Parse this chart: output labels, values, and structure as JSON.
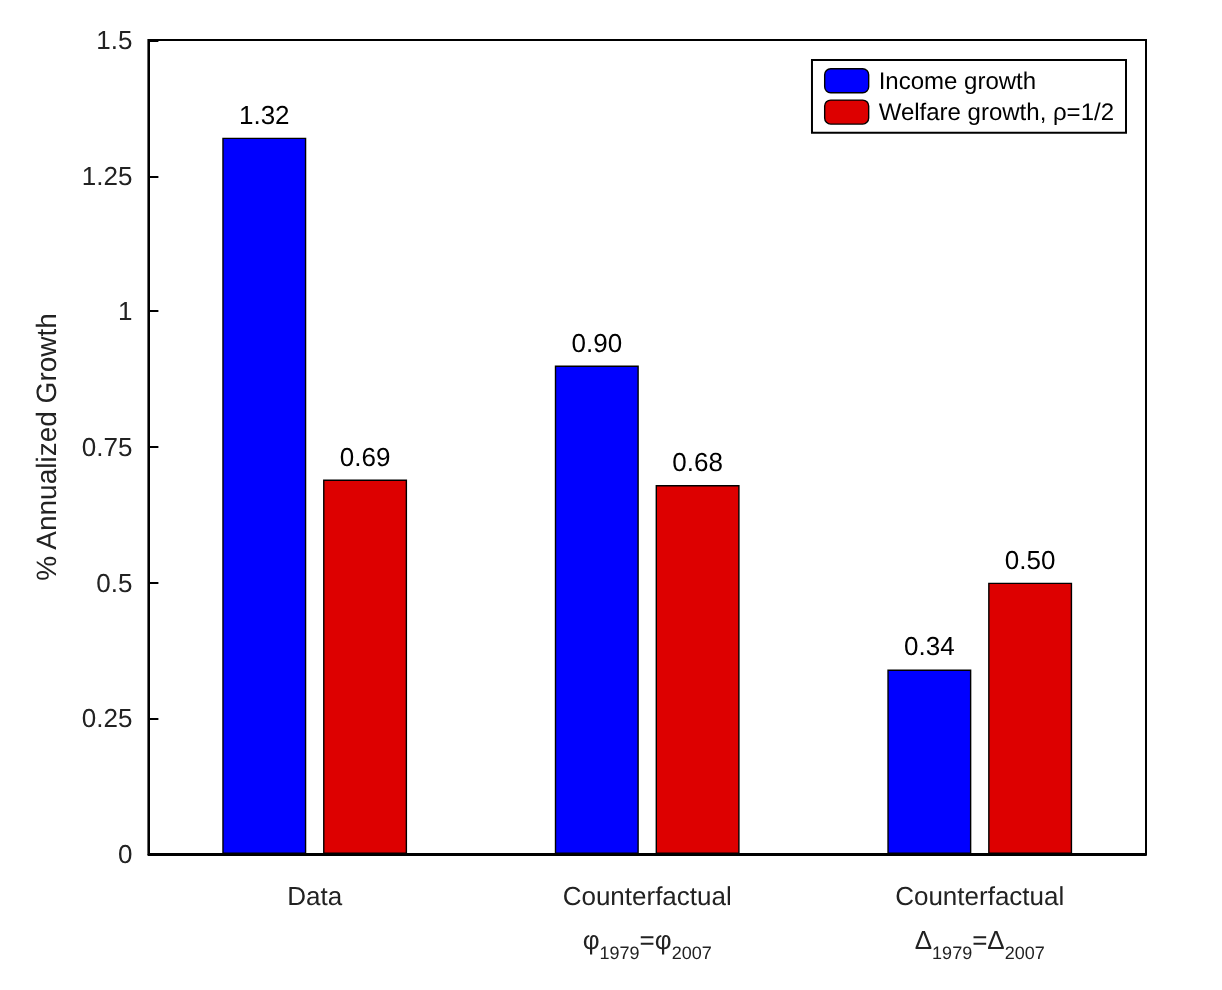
{
  "chart_data": {
    "type": "bar",
    "ylabel": "% Annualized Growth",
    "categories": [
      "Data",
      "Counterfactual\nφ$_{1979}$=φ$_{2007}$",
      "Counterfactual\nΔ$_{1979}$=Δ$_{2007}$"
    ],
    "series": [
      {
        "name": "Income growth",
        "color": "#0000ff",
        "values": [
          1.32,
          0.9,
          0.34
        ]
      },
      {
        "name": "Welfare growth, ρ=1/2",
        "color": "#dd0000",
        "values": [
          0.69,
          0.68,
          0.5
        ]
      }
    ],
    "value_labels": [
      [
        "1.32",
        "0.90",
        "0.34"
      ],
      [
        "0.69",
        "0.68",
        "0.50"
      ]
    ],
    "ylim": [
      0,
      1.5
    ],
    "yticks": [
      0,
      0.25,
      0.5,
      0.75,
      1,
      1.25,
      1.5
    ],
    "grid": false,
    "legend": "top right"
  }
}
